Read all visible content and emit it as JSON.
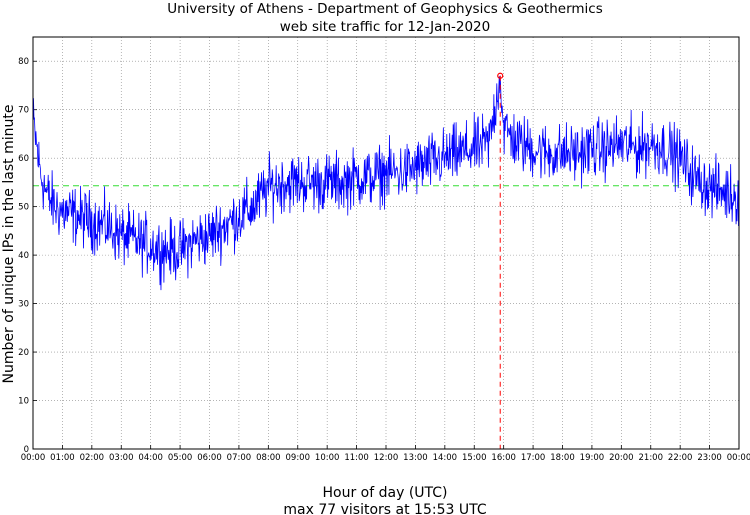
{
  "chart_data": {
    "type": "line",
    "title": "University of Athens - Department of Geophysics & Geothermics",
    "subtitle": "web site traffic for 12-Jan-2020",
    "xlabel": "Hour of day (UTC)",
    "ylabel": "Number of unique IPs in the last minute",
    "footer": "max 77 visitors at 15:53 UTC",
    "xlim": [
      0,
      24
    ],
    "ylim": [
      0,
      85
    ],
    "x_ticks": [
      0,
      1,
      2,
      3,
      4,
      5,
      6,
      7,
      8,
      9,
      10,
      11,
      12,
      13,
      14,
      15,
      16,
      17,
      18,
      19,
      20,
      21,
      22,
      23,
      24
    ],
    "x_tick_labels": [
      "00:00",
      "01:00",
      "02:00",
      "03:00",
      "04:00",
      "05:00",
      "06:00",
      "07:00",
      "08:00",
      "09:00",
      "10:00",
      "11:00",
      "12:00",
      "13:00",
      "14:00",
      "15:00",
      "16:00",
      "17:00",
      "18:00",
      "19:00",
      "20:00",
      "21:00",
      "22:00",
      "23:00",
      "00:00"
    ],
    "y_ticks": [
      0,
      10,
      20,
      30,
      40,
      50,
      60,
      70,
      80
    ],
    "y_tick_labels": [
      "0",
      "10",
      "20",
      "30",
      "40",
      "50",
      "60",
      "70",
      "80"
    ],
    "grid": true,
    "mean_line": 54.3,
    "max": {
      "x": 15.883,
      "y": 77
    },
    "series": [
      {
        "color": "#0000ff",
        "x": [
          0,
          0.25,
          0.5,
          0.75,
          1,
          1.5,
          2,
          2.5,
          3,
          3.5,
          4,
          4.5,
          5,
          5.5,
          6,
          6.5,
          7,
          7.5,
          8,
          8.5,
          9,
          9.5,
          10,
          10.5,
          11,
          11.5,
          12,
          12.5,
          13,
          13.5,
          14,
          14.5,
          15,
          15.5,
          15.883,
          16,
          16.5,
          17,
          17.5,
          18,
          18.5,
          19,
          19.5,
          20,
          20.5,
          21,
          21.5,
          22,
          22.5,
          23,
          23.5,
          24
        ],
        "y": [
          68,
          57,
          52,
          50,
          49,
          48,
          47,
          46,
          44,
          43,
          42,
          41,
          41,
          43,
          44,
          46,
          48,
          50,
          54,
          55,
          55,
          55,
          55,
          55,
          56,
          56,
          57,
          57,
          58,
          59,
          60,
          61,
          62,
          63,
          77,
          66,
          63,
          62,
          61,
          61,
          61,
          62,
          62,
          63,
          62,
          63,
          62,
          60,
          56,
          54,
          53,
          52
        ]
      }
    ]
  }
}
